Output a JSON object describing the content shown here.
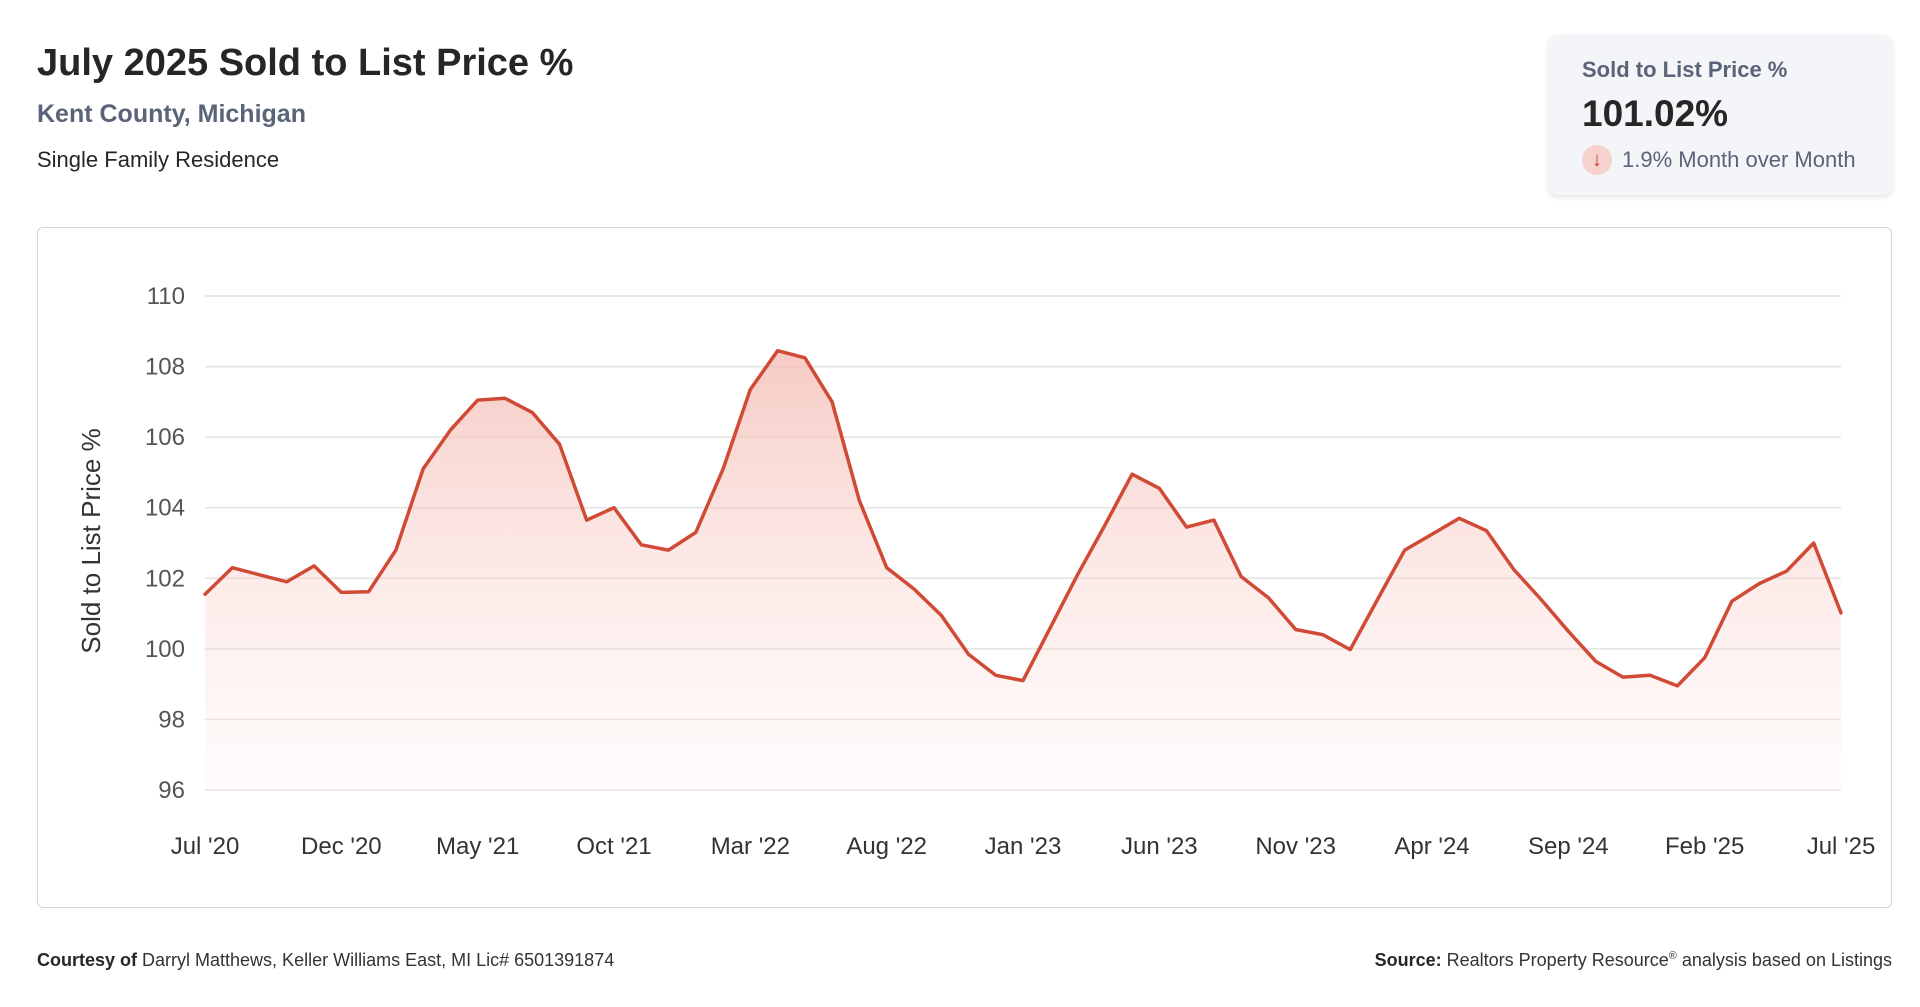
{
  "header": {
    "title": "July 2025 Sold to List Price %",
    "subtitle": "Kent County, Michigan",
    "segment": "Single Family Residence"
  },
  "kpi": {
    "label": "Sold to List Price %",
    "value": "101.02%",
    "change": "1.9% Month over Month",
    "direction_icon": "arrow-down-icon"
  },
  "footer": {
    "courtesy_label": "Courtesy of",
    "courtesy_text": "Darryl Matthews, Keller Williams East, MI Lic# 6501391874",
    "source_label": "Source:",
    "source_name": "Realtors Property Resource",
    "source_mark": "®",
    "source_rest": "analysis based on Listings"
  },
  "colors": {
    "line": "#d04a35",
    "fill_top": "#f4b9b1",
    "grid": "#e3e3e3",
    "axis_text": "#555555"
  },
  "chart_data": {
    "type": "area",
    "ylabel": "Sold to List Price %",
    "xlabel": "",
    "ylim": [
      96,
      110
    ],
    "yticks": [
      96,
      98,
      100,
      102,
      104,
      106,
      108,
      110
    ],
    "grid": true,
    "x_tick_labels": [
      "Jul '20",
      "Dec '20",
      "May '21",
      "Oct '21",
      "Mar '22",
      "Aug '22",
      "Jan '23",
      "Jun '23",
      "Nov '23",
      "Apr '24",
      "Sep '24",
      "Feb '25",
      "Jul '25"
    ],
    "x": [
      "2020-07",
      "2020-08",
      "2020-09",
      "2020-10",
      "2020-11",
      "2020-12",
      "2021-01",
      "2021-02",
      "2021-03",
      "2021-04",
      "2021-05",
      "2021-06",
      "2021-07",
      "2021-08",
      "2021-09",
      "2021-10",
      "2021-11",
      "2021-12",
      "2022-01",
      "2022-02",
      "2022-03",
      "2022-04",
      "2022-05",
      "2022-06",
      "2022-07",
      "2022-08",
      "2022-09",
      "2022-10",
      "2022-11",
      "2022-12",
      "2023-01",
      "2023-02",
      "2023-03",
      "2023-04",
      "2023-05",
      "2023-06",
      "2023-07",
      "2023-08",
      "2023-09",
      "2023-10",
      "2023-11",
      "2023-12",
      "2024-01",
      "2024-02",
      "2024-03",
      "2024-04",
      "2024-05",
      "2024-06",
      "2024-07",
      "2024-08",
      "2024-09",
      "2024-10",
      "2024-11",
      "2024-12",
      "2025-01",
      "2025-02",
      "2025-03",
      "2025-04",
      "2025-05",
      "2025-06",
      "2025-07"
    ],
    "series": [
      {
        "values": [
          101.55,
          102.3,
          102.1,
          101.9,
          102.35,
          101.6,
          101.62,
          102.8,
          105.1,
          106.2,
          107.05,
          107.1,
          106.7,
          105.8,
          103.65,
          104.0,
          102.95,
          102.8,
          103.3,
          105.1,
          107.35,
          108.45,
          108.25,
          107.0,
          104.2,
          102.3,
          101.7,
          100.95,
          99.85,
          99.25,
          99.1,
          100.6,
          102.1,
          103.5,
          104.95,
          104.55,
          103.45,
          103.65,
          102.05,
          101.45,
          100.55,
          100.4,
          99.98,
          101.4,
          102.8,
          103.25,
          103.7,
          103.35,
          102.25,
          101.4,
          100.5,
          99.65,
          99.2,
          99.25,
          98.95,
          99.75,
          101.35,
          101.85,
          102.2,
          103.0,
          101.02
        ]
      }
    ]
  }
}
